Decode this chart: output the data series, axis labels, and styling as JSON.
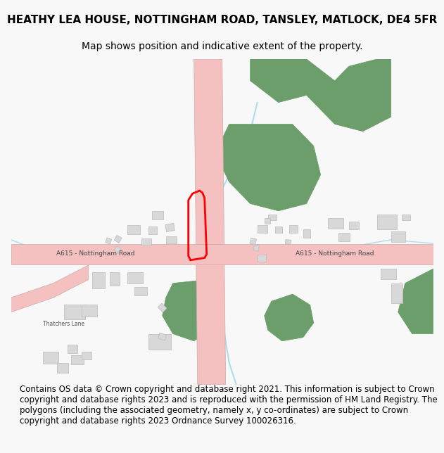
{
  "title_line1": "HEATHY LEA HOUSE, NOTTINGHAM ROAD, TANSLEY, MATLOCK, DE4 5FR",
  "title_line2": "Map shows position and indicative extent of the property.",
  "footer_text": "Contains OS data © Crown copyright and database right 2021. This information is subject to Crown copyright and database rights 2023 and is reproduced with the permission of HM Land Registry. The polygons (including the associated geometry, namely x, y co-ordinates) are subject to Crown copyright and database rights 2023 Ordnance Survey 100026316.",
  "background_color": "#f8f8f8",
  "map_background": "#ffffff",
  "road_color": "#f5c0c0",
  "road_border_color": "#ccaaaa",
  "green_color": "#6b9e6b",
  "building_color": "#d8d8d8",
  "building_border": "#bbbbbb",
  "road_label_color": "#555555",
  "red_polygon_color": "#ff0000",
  "stream_color": "#aaddee",
  "title_fontsize": 11,
  "subtitle_fontsize": 10,
  "footer_fontsize": 8.5
}
